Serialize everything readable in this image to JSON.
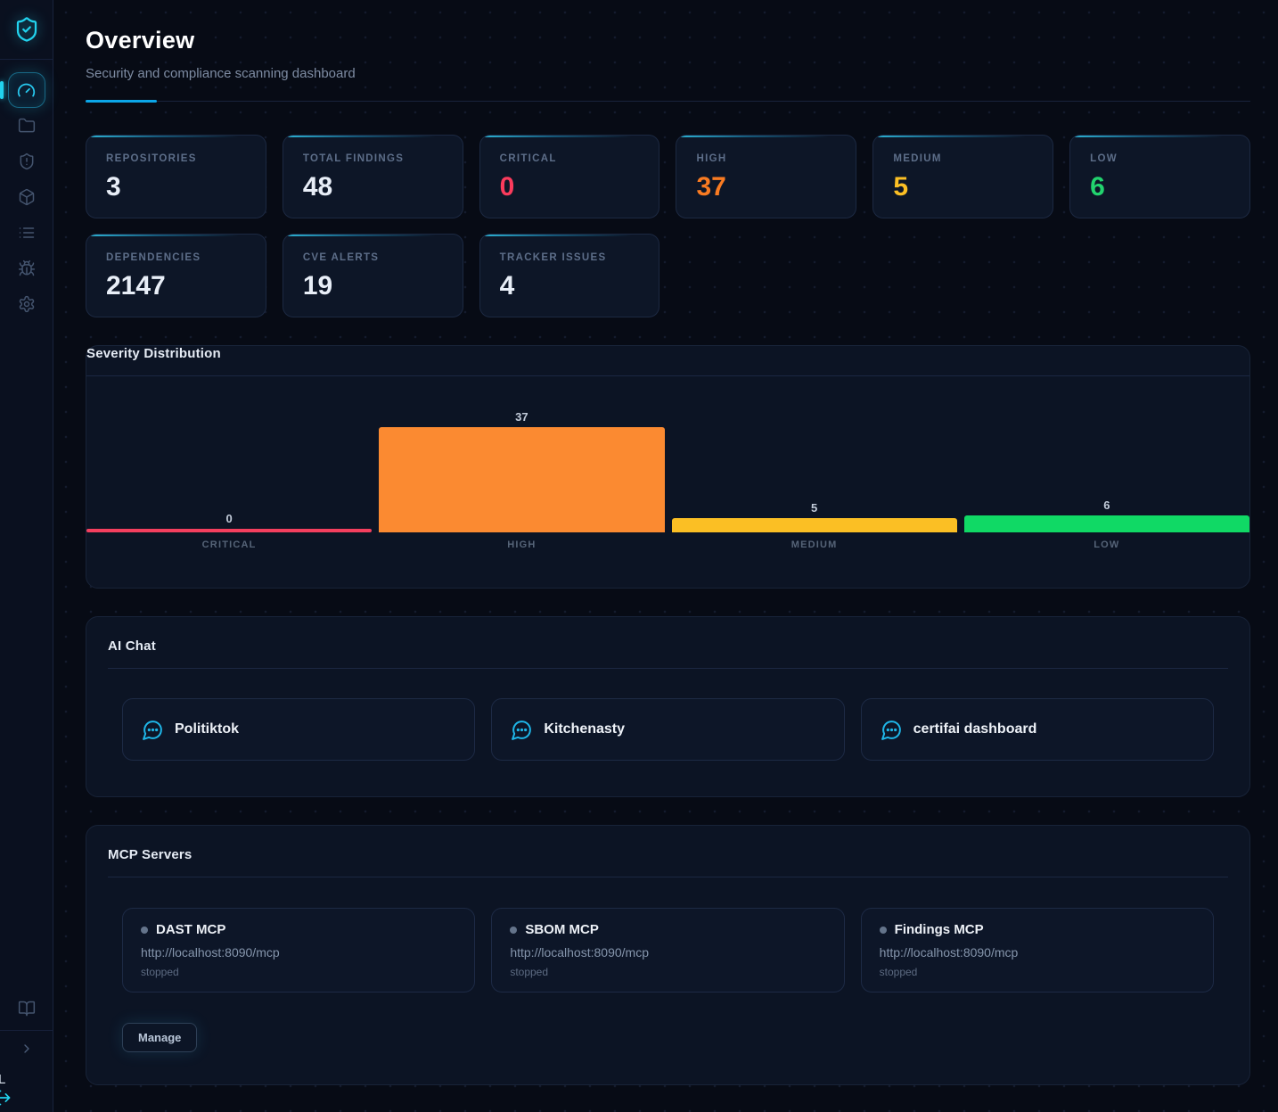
{
  "header": {
    "title": "Overview",
    "subtitle": "Security and compliance scanning dashboard"
  },
  "sidebar": {
    "logo_icon": "shield-check-icon",
    "items": [
      {
        "icon": "gauge-dashboard-icon",
        "active": true
      },
      {
        "icon": "folder-icon",
        "active": false
      },
      {
        "icon": "shield-alert-icon",
        "active": false
      },
      {
        "icon": "package-icon",
        "active": false
      },
      {
        "icon": "list-icon",
        "active": false
      },
      {
        "icon": "bug-icon",
        "active": false
      },
      {
        "icon": "gear-icon",
        "active": false
      }
    ],
    "bottom_icons": [
      "book-icon",
      "chevron-right-icon",
      "logout-icon"
    ],
    "bottom_label": "L"
  },
  "stats": [
    {
      "label": "REPOSITORIES",
      "value": "3",
      "color": "#e8eef7"
    },
    {
      "label": "TOTAL FINDINGS",
      "value": "48",
      "color": "#e8eef7"
    },
    {
      "label": "CRITICAL",
      "value": "0",
      "color": "#fb3b5c"
    },
    {
      "label": "HIGH",
      "value": "37",
      "color": "#f97b22"
    },
    {
      "label": "MEDIUM",
      "value": "5",
      "color": "#fbbf24"
    },
    {
      "label": "LOW",
      "value": "6",
      "color": "#22d36e"
    },
    {
      "label": "DEPENDENCIES",
      "value": "2147",
      "color": "#e8eef7"
    },
    {
      "label": "CVE ALERTS",
      "value": "19",
      "color": "#e8eef7"
    },
    {
      "label": "TRACKER ISSUES",
      "value": "4",
      "color": "#e8eef7"
    }
  ],
  "chart_data": {
    "type": "bar",
    "title": "Severity Distribution",
    "categories": [
      "CRITICAL",
      "HIGH",
      "MEDIUM",
      "LOW"
    ],
    "values": [
      0,
      37,
      5,
      6
    ],
    "colors": [
      "#f43f5e",
      "#fb8a31",
      "#fbbf24",
      "#10d965"
    ],
    "ylim": [
      0,
      37
    ],
    "grid": false,
    "legend": false,
    "value_labels": true
  },
  "ai_chat": {
    "title": "AI Chat",
    "icon": "chat-bubble-icon",
    "items": [
      {
        "label": "Politiktok"
      },
      {
        "label": "Kitchenasty"
      },
      {
        "label": "certifai dashboard"
      }
    ]
  },
  "mcp": {
    "title": "MCP Servers",
    "servers": [
      {
        "name": "DAST MCP",
        "url": "http://localhost:8090/mcp",
        "status": "stopped"
      },
      {
        "name": "SBOM MCP",
        "url": "http://localhost:8090/mcp",
        "status": "stopped"
      },
      {
        "name": "Findings MCP",
        "url": "http://localhost:8090/mcp",
        "status": "stopped"
      }
    ],
    "manage_label": "Manage"
  },
  "colors": {
    "accent_cyan": "#22d3ee",
    "accent_blue": "#0ba6e8",
    "critical": "#f43f5e",
    "high": "#f97b22",
    "medium": "#fbbf24",
    "low": "#10d965"
  }
}
